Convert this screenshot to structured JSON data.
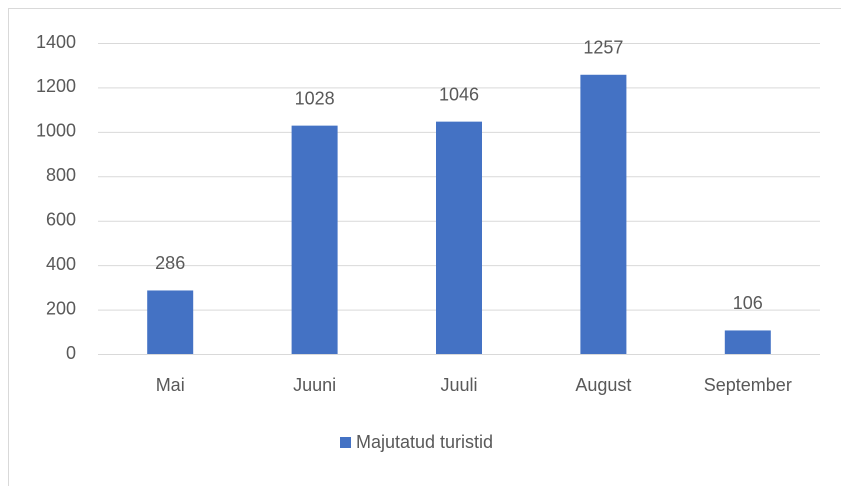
{
  "chart_data": {
    "type": "bar",
    "categories": [
      "Mai",
      "Juuni",
      "Juuli",
      "August",
      "September"
    ],
    "series": [
      {
        "name": "Majutatud turistid",
        "color": "#4472c4",
        "values": [
          286,
          1028,
          1046,
          1257,
          106
        ]
      }
    ],
    "ylim": [
      0,
      1400
    ],
    "yticks": [
      0,
      200,
      400,
      600,
      800,
      1000,
      1200,
      1400
    ],
    "grid": true,
    "data_labels": true,
    "legend": "bottom"
  }
}
